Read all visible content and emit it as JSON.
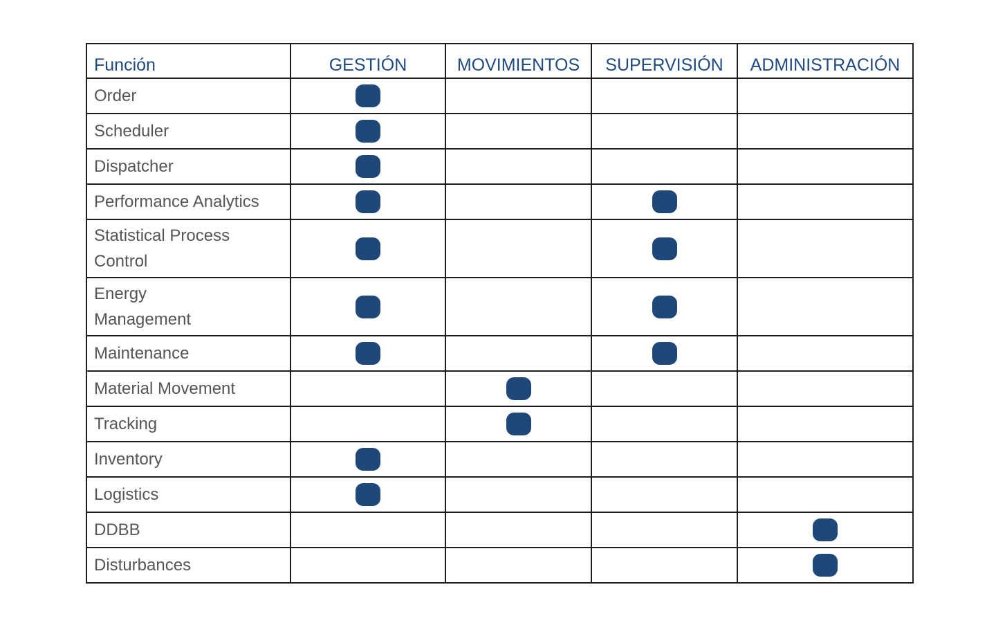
{
  "mark_color": "#1f4878",
  "mark_icon": "rounded-square",
  "table": {
    "headers": [
      "Función",
      "GESTIÓN",
      "MOVIMIENTOS",
      "SUPERVISIÓN",
      "ADMINISTRACIÓN"
    ],
    "rows": [
      {
        "label": "Order",
        "marks": [
          true,
          false,
          false,
          false
        ]
      },
      {
        "label": "Scheduler",
        "marks": [
          true,
          false,
          false,
          false
        ]
      },
      {
        "label": "Dispatcher",
        "marks": [
          true,
          false,
          false,
          false
        ]
      },
      {
        "label": "Performance Analytics",
        "marks": [
          true,
          false,
          true,
          false
        ]
      },
      {
        "label": "Statistical Process Control",
        "marks": [
          true,
          false,
          true,
          false
        ]
      },
      {
        "label": "Energy Management",
        "marks": [
          true,
          false,
          true,
          false
        ]
      },
      {
        "label": "Maintenance",
        "marks": [
          true,
          false,
          true,
          false
        ]
      },
      {
        "label": "Material Movement",
        "marks": [
          false,
          true,
          false,
          false
        ]
      },
      {
        "label": "Tracking",
        "marks": [
          false,
          true,
          false,
          false
        ]
      },
      {
        "label": "Inventory",
        "marks": [
          true,
          false,
          false,
          false
        ]
      },
      {
        "label": "Logistics",
        "marks": [
          true,
          false,
          false,
          false
        ]
      },
      {
        "label": "DDBB",
        "marks": [
          false,
          false,
          false,
          true
        ]
      },
      {
        "label": "Disturbances",
        "marks": [
          false,
          false,
          false,
          true
        ]
      }
    ]
  }
}
